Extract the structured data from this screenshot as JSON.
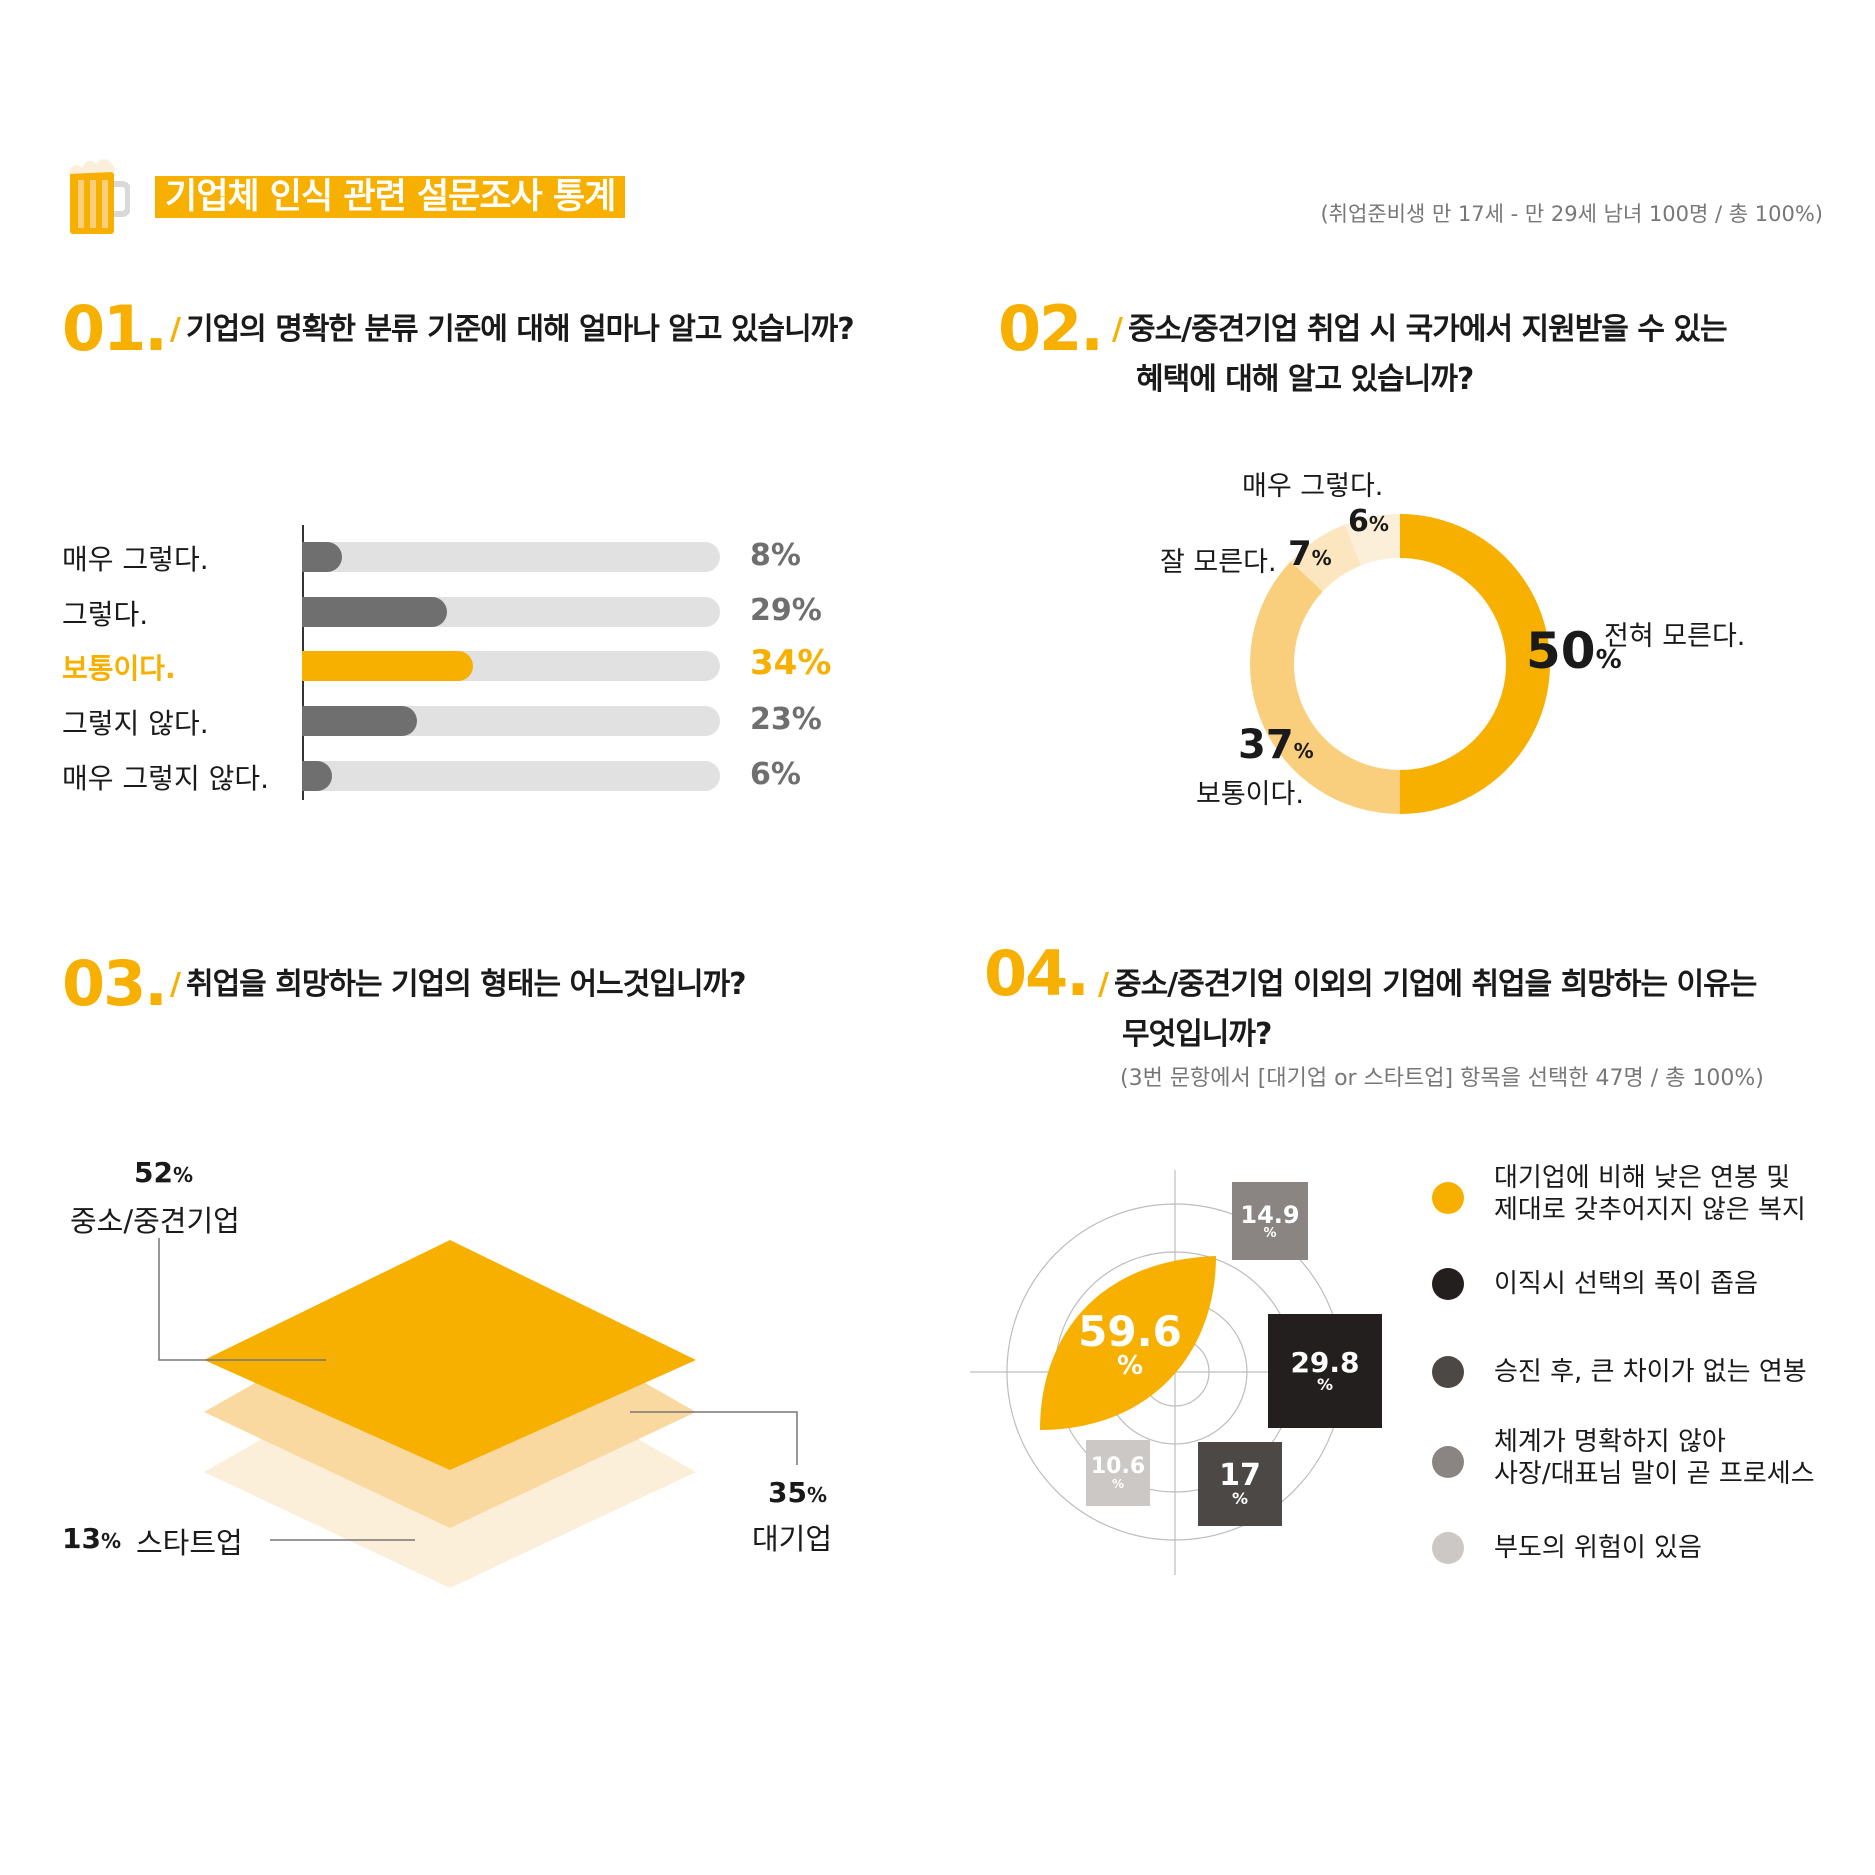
{
  "header": {
    "title": "기업체 인식 관련 설문조사 통계",
    "note": "(취업준비생 만 17세 - 만 29세 남녀 100명 / 총 100%)"
  },
  "colors": {
    "accent": "#f7b000",
    "accent_mid": "#f9cf7d",
    "accent_light": "#fbe6c0",
    "accent_pale": "#fcefd9",
    "dark": "#231f1e",
    "darkgray": "#4c4845",
    "gray": "#8a8583",
    "lightgray": "#cbc8c6"
  },
  "q1": {
    "number": "01.",
    "question": "기업의 명확한 분류 기준에 대해 얼마나 알고 있습니까?"
  },
  "q2": {
    "number": "02.",
    "question_line1": "중소/중견기업 취업 시 국가에서 지원받을 수 있는",
    "question_line2": "혜택에 대해 알고 있습니까?"
  },
  "q3": {
    "number": "03.",
    "question": "취업을 희망하는 기업의 형태는 어느것입니까?"
  },
  "q4": {
    "number": "04.",
    "question_line1": "중소/중견기업 이외의 기업에 취업을 희망하는 이유는",
    "question_line2": "무엇입니까?",
    "note": "(3번 문항에서 [대기업 or 스타트업] 항목을 선택한 47명 / 총 100%)"
  },
  "chart_data": [
    {
      "type": "bar",
      "orientation": "horizontal",
      "categories": [
        "매우 그렇다.",
        "그렇다.",
        "보통이다.",
        "그렇지 않다.",
        "매우 그렇지 않다."
      ],
      "values": [
        8,
        29,
        34,
        23,
        6
      ],
      "value_labels": [
        "8%",
        "29%",
        "34%",
        "23%",
        "6%"
      ],
      "highlight_index": 2,
      "xlim": [
        0,
        100
      ]
    },
    {
      "type": "pie",
      "style": "donut",
      "categories": [
        "전혀 모른다.",
        "보통이다.",
        "잘 모른다.",
        "매우 그렇다."
      ],
      "values": [
        50,
        37,
        7,
        6
      ],
      "value_labels": [
        "50",
        "37",
        "7",
        "6"
      ],
      "unit": "%"
    },
    {
      "type": "other",
      "style": "stacked-diamond",
      "categories": [
        "중소/중견기업",
        "대기업",
        "스타트업"
      ],
      "values": [
        52,
        35,
        13
      ],
      "value_labels": [
        "52",
        "35",
        "13"
      ],
      "unit": "%"
    },
    {
      "type": "other",
      "style": "polar-boxes",
      "categories": [
        "대기업에 비해 낮은 연봉 및\n제대로 갖추어지지 않은 복지",
        "이직시 선택의 폭이 좁음",
        "승진 후, 큰 차이가 없는 연봉",
        "체계가 명확하지 않아\n사장/대표님 말이 곧 프로세스",
        "부도의 위험이 있음"
      ],
      "values": [
        59.6,
        29.8,
        17,
        14.9,
        10.6
      ],
      "value_labels": [
        "59.6",
        "29.8",
        "17",
        "14.9",
        "10.6"
      ],
      "unit": "%"
    }
  ]
}
